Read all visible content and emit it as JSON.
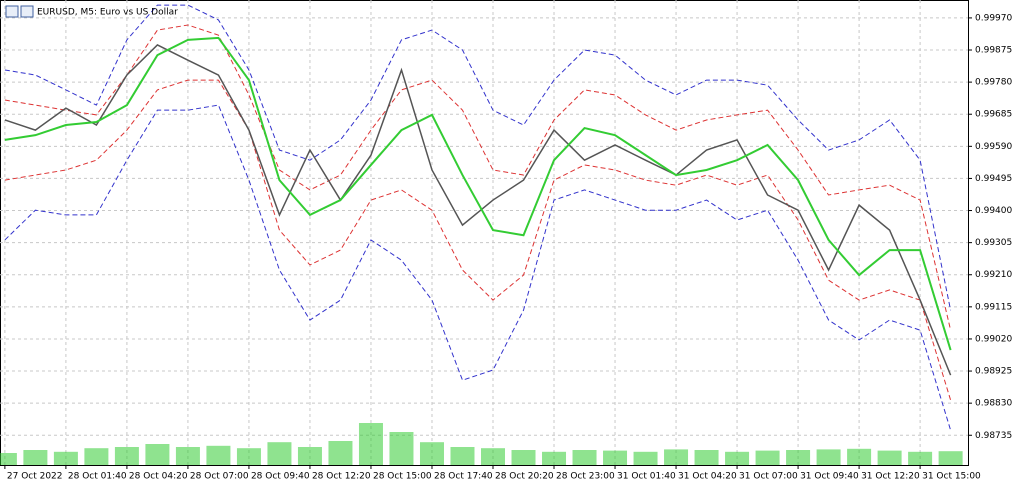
{
  "chart_data": {
    "type": "line",
    "title": "EURUSD, M5: Euro vs US Dollar",
    "grid": true,
    "ylim": [
      0.98647,
      1.00023
    ],
    "yticks": [
      {
        "value": 0.9997,
        "label": "0.99970"
      },
      {
        "value": 0.99875,
        "label": "0.99875"
      },
      {
        "value": 0.9978,
        "label": "0.99780"
      },
      {
        "value": 0.99685,
        "label": "0.99685"
      },
      {
        "value": 0.9959,
        "label": "0.99590"
      },
      {
        "value": 0.99495,
        "label": "0.99495"
      },
      {
        "value": 0.994,
        "label": "0.99400"
      },
      {
        "value": 0.99305,
        "label": "0.99305"
      },
      {
        "value": 0.9921,
        "label": "0.99210"
      },
      {
        "value": 0.99115,
        "label": "0.99115"
      },
      {
        "value": 0.9902,
        "label": "0.99020"
      },
      {
        "value": 0.98925,
        "label": "0.98925"
      },
      {
        "value": 0.9883,
        "label": "0.98830"
      },
      {
        "value": 0.98735,
        "label": "0.98735"
      }
    ],
    "xlim": [
      -0.16,
      31.57
    ],
    "xticks": [
      {
        "value": 0,
        "label": "27 Oct 2022"
      },
      {
        "value": 2,
        "label": "28 Oct 01:40"
      },
      {
        "value": 4,
        "label": "28 Oct 04:20"
      },
      {
        "value": 6,
        "label": "28 Oct 07:00"
      },
      {
        "value": 8,
        "label": "28 Oct 09:40"
      },
      {
        "value": 10,
        "label": "28 Oct 12:20"
      },
      {
        "value": 12,
        "label": "28 Oct 15:00"
      },
      {
        "value": 14,
        "label": "28 Oct 17:40"
      },
      {
        "value": 16,
        "label": "28 Oct 20:20"
      },
      {
        "value": 18,
        "label": "28 Oct 23:00"
      },
      {
        "value": 20,
        "label": "31 Oct 01:40"
      },
      {
        "value": 22,
        "label": "31 Oct 04:20"
      },
      {
        "value": 24,
        "label": "31 Oct 07:00"
      },
      {
        "value": 26,
        "label": "31 Oct 09:40"
      },
      {
        "value": 28,
        "label": "31 Oct 12:20"
      },
      {
        "value": 30,
        "label": "31 Oct 15:00"
      }
    ],
    "series": [
      {
        "color": "#3333cc",
        "dash": true,
        "width": 1,
        "values": [
          0.99816,
          0.99801,
          0.99757,
          0.99712,
          0.99905,
          1.00008,
          1.00008,
          0.99964,
          0.99816,
          0.99579,
          0.99549,
          0.99609,
          0.99727,
          0.99905,
          0.99934,
          0.99875,
          0.99697,
          0.99653,
          0.99786,
          0.99875,
          0.9986,
          0.99786,
          0.99742,
          0.99786,
          0.99786,
          0.99771,
          0.99668,
          0.99579,
          0.99609,
          0.99668,
          0.99549,
          0.99105
        ]
      },
      {
        "color": "#3333cc",
        "dash": true,
        "width": 1,
        "values": [
          0.99313,
          0.99401,
          0.99387,
          0.99387,
          0.99549,
          0.99697,
          0.99697,
          0.99712,
          0.9949,
          0.99224,
          0.99076,
          0.99135,
          0.99313,
          0.99253,
          0.99135,
          0.98898,
          0.98928,
          0.99105,
          0.99431,
          0.99461,
          0.99431,
          0.99401,
          0.99401,
          0.99431,
          0.99372,
          0.99401,
          0.99253,
          0.99076,
          0.99017,
          0.99076,
          0.99046,
          0.9875
        ]
      },
      {
        "color": "#dd3333",
        "dash": true,
        "width": 1,
        "values": [
          0.99727,
          0.99712,
          0.99697,
          0.99683,
          0.99801,
          0.99934,
          0.99949,
          0.99919,
          0.99742,
          0.9952,
          0.99461,
          0.99505,
          0.99638,
          0.99757,
          0.99786,
          0.99697,
          0.9952,
          0.99505,
          0.99668,
          0.99757,
          0.99742,
          0.99683,
          0.99638,
          0.99668,
          0.99683,
          0.99697,
          0.99579,
          0.99446,
          0.99461,
          0.99475,
          0.99431,
          0.99046
        ]
      },
      {
        "color": "#dd3333",
        "dash": true,
        "width": 1,
        "values": [
          0.9949,
          0.99505,
          0.9952,
          0.99549,
          0.99638,
          0.99757,
          0.99786,
          0.99786,
          0.99638,
          0.99342,
          0.99239,
          0.99283,
          0.99431,
          0.99461,
          0.99401,
          0.99224,
          0.99135,
          0.99209,
          0.9949,
          0.99535,
          0.9952,
          0.9949,
          0.99475,
          0.99505,
          0.99475,
          0.99505,
          0.99372,
          0.99194,
          0.99135,
          0.99165,
          0.99135,
          0.98839
        ]
      },
      {
        "color": "#555555",
        "dash": false,
        "width": 1.5,
        "values": [
          0.99668,
          0.99638,
          0.99703,
          0.99653,
          0.99801,
          0.9989,
          0.99845,
          0.99801,
          0.99638,
          0.99387,
          0.99579,
          0.99431,
          0.99564,
          0.99816,
          0.9952,
          0.99357,
          0.99431,
          0.9949,
          0.99638,
          0.99549,
          0.99594,
          0.99549,
          0.99505,
          0.99579,
          0.99609,
          0.99446,
          0.99401,
          0.99224,
          0.99416,
          0.99342,
          0.99135,
          0.98913
        ]
      },
      {
        "color": "#33cc33",
        "dash": false,
        "width": 2,
        "values": [
          0.99609,
          0.99623,
          0.99653,
          0.99662,
          0.99712,
          0.9986,
          0.99905,
          0.99911,
          0.99786,
          0.9949,
          0.99387,
          0.99431,
          0.99535,
          0.99638,
          0.99683,
          0.99505,
          0.99342,
          0.99327,
          0.99549,
          0.99644,
          0.99623,
          0.99564,
          0.99505,
          0.9952,
          0.99549,
          0.99594,
          0.9949,
          0.99313,
          0.99209,
          0.99283,
          0.99283,
          0.98987
        ]
      }
    ],
    "volume": {
      "color": "#33cc33",
      "ylim": [
        0,
        100
      ],
      "values": [
        20,
        25,
        22,
        28,
        30,
        35,
        30,
        32,
        28,
        38,
        30,
        40,
        70,
        55,
        38,
        30,
        28,
        25,
        22,
        25,
        24,
        22,
        26,
        25,
        22,
        24,
        25,
        26,
        27,
        24,
        22,
        23
      ]
    }
  }
}
